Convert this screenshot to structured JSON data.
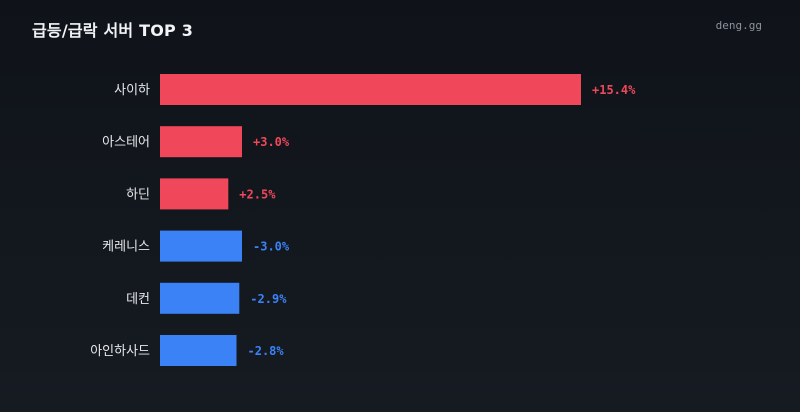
{
  "header": {
    "title": "급등/급락 서버 TOP 3",
    "brand": "deng.gg"
  },
  "colors": {
    "background": "#12161c",
    "up": "#f0485a",
    "down": "#3b82f6",
    "title": "#f1f3f6",
    "label": "#e6e8eb",
    "brand": "#8a929c"
  },
  "chart_data": {
    "type": "bar",
    "orientation": "horizontal",
    "title": "급등/급락 서버 TOP 3",
    "categories": [
      "사이하",
      "아스테어",
      "하딘",
      "케레니스",
      "데컨",
      "아인하사드"
    ],
    "values": [
      15.4,
      3.0,
      2.5,
      -3.0,
      -2.9,
      -2.8
    ],
    "value_labels": [
      "+15.4%",
      "+3.0%",
      "+2.5%",
      "-3.0%",
      "-2.9%",
      "-2.8%"
    ],
    "bar_length": "absolute value",
    "color_rule": "positive = up color, negative = down color",
    "xlim": [
      0,
      15.4
    ],
    "grid": false,
    "legend": "none"
  }
}
